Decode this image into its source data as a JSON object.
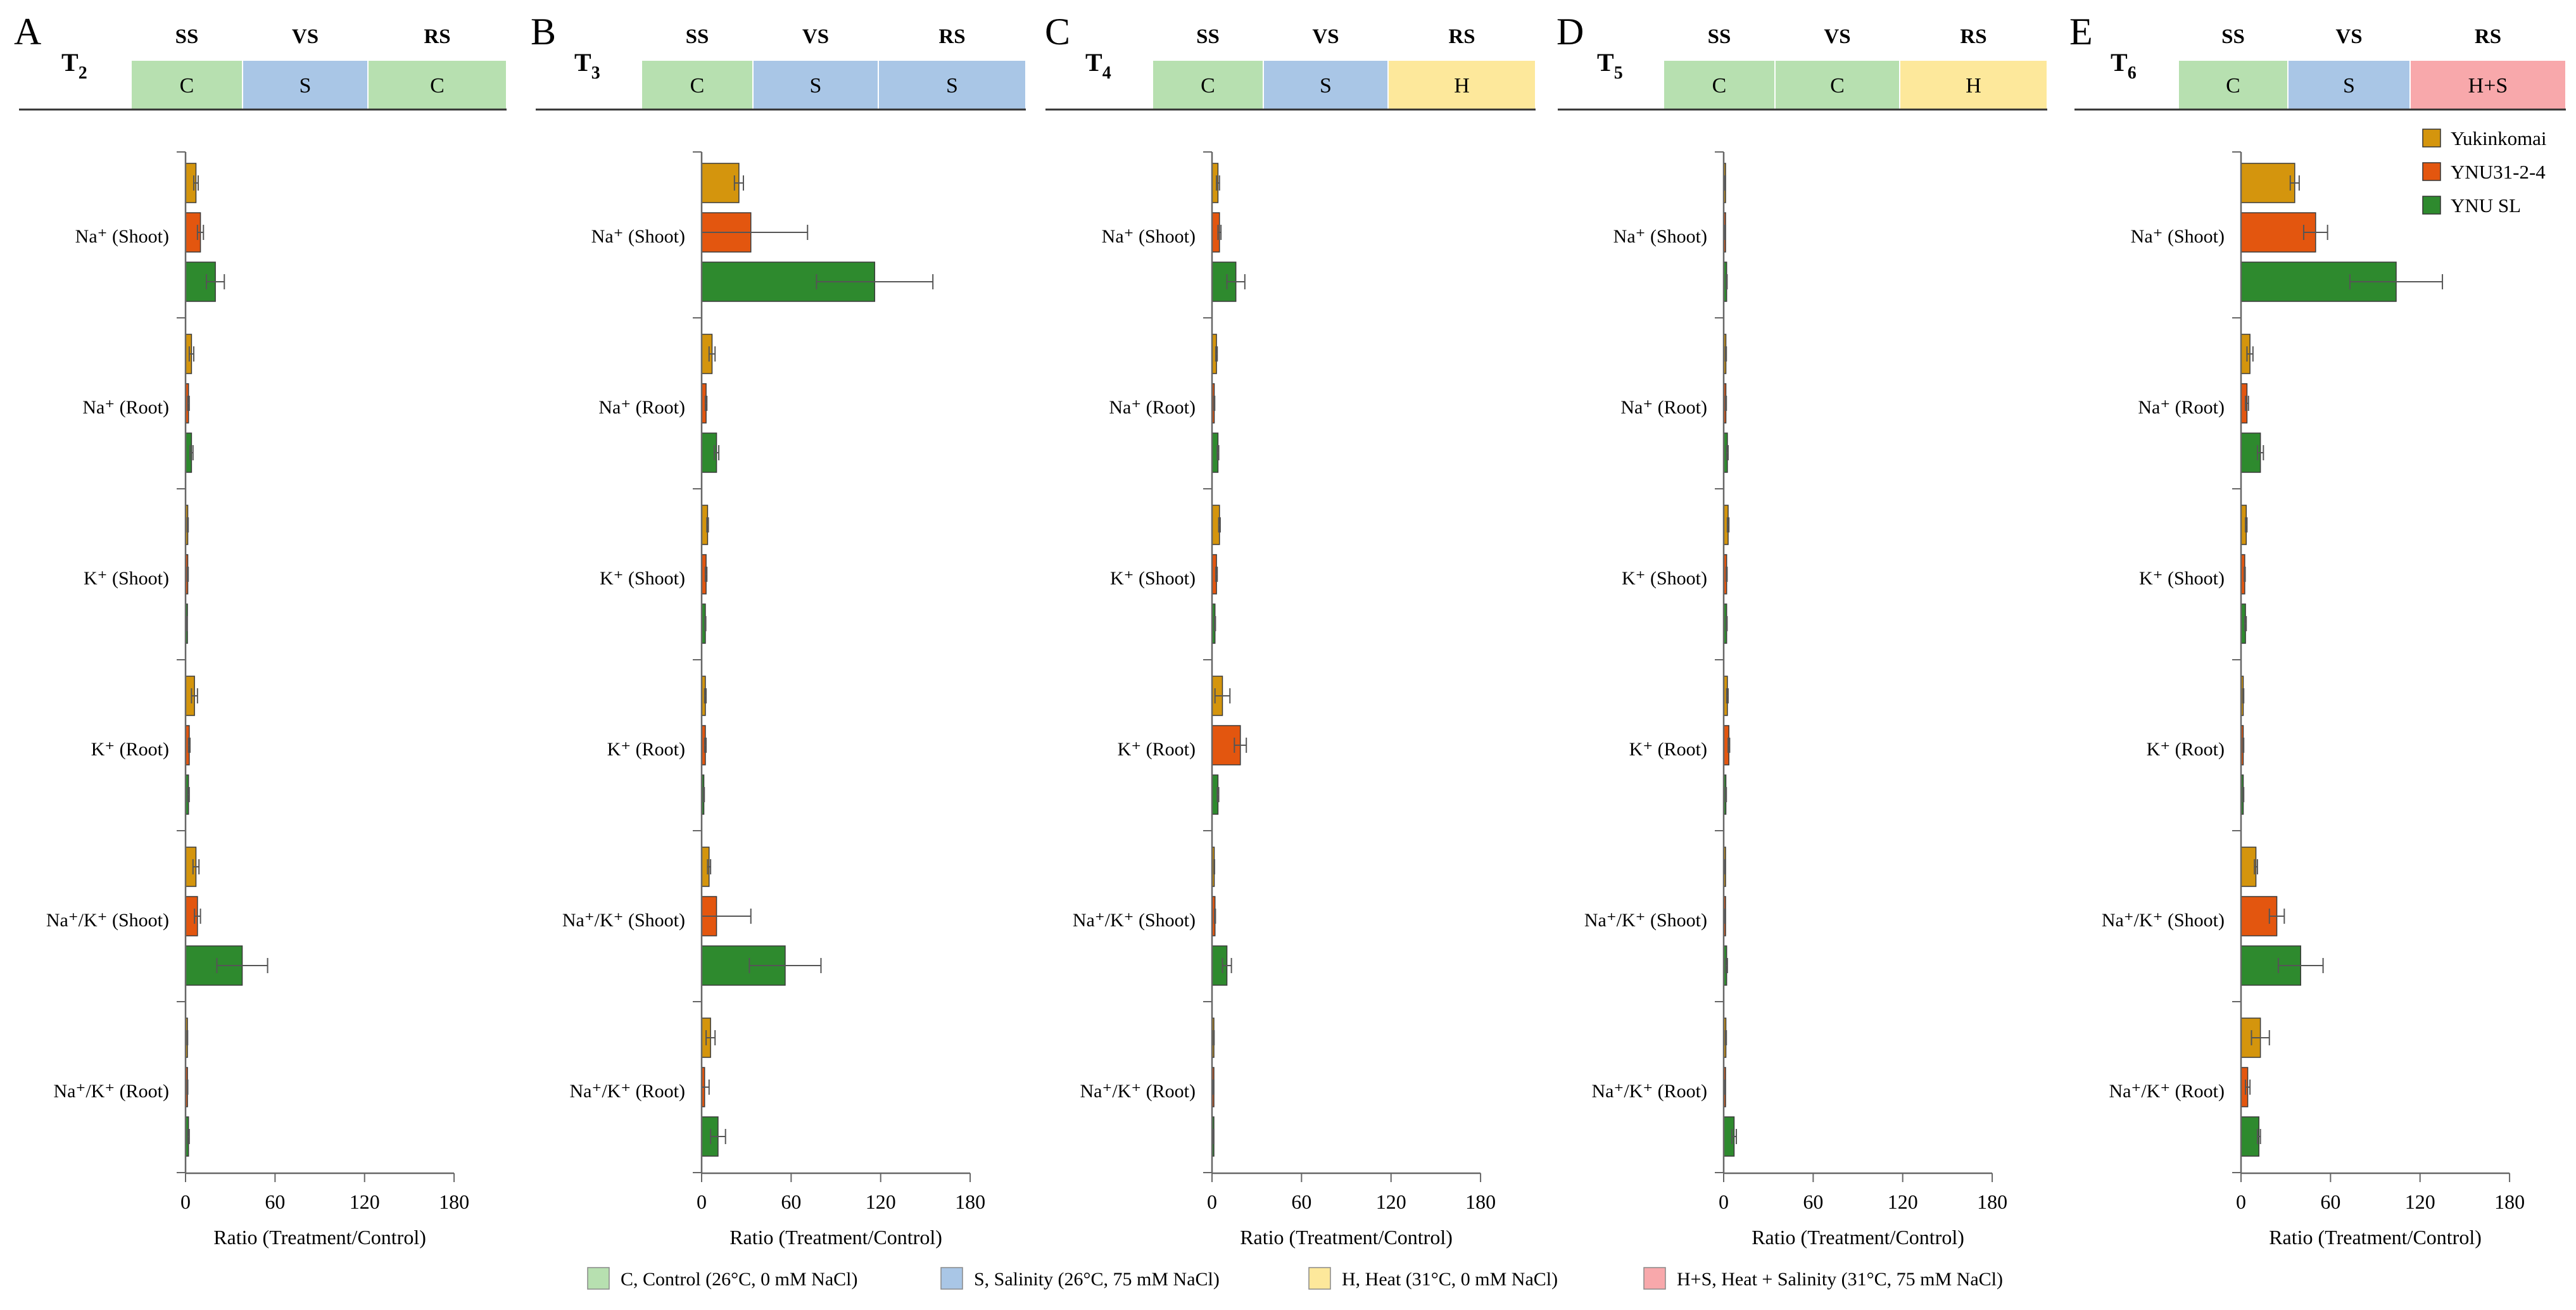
{
  "colors": {
    "C": "#b7e0b0",
    "S": "#a9c6e6",
    "H": "#fde89b",
    "H+S": "#f8a8ab",
    "Yukinkomai": "#d4950d",
    "YNU31-2-4": "#e3560f",
    "YNU SL": "#2e8a2e"
  },
  "stage_headers": [
    "SS",
    "VS",
    "RS"
  ],
  "legend_series": [
    "Yukinkomai",
    "YNU31-2-4",
    "YNU SL"
  ],
  "bottom_legend": [
    {
      "code": "C",
      "text": "C, Control (26°C, 0 mM NaCl)"
    },
    {
      "code": "S",
      "text": "S, Salinity (26°C, 75 mM NaCl)"
    },
    {
      "code": "H",
      "text": "H, Heat (31°C, 0 mM NaCl)"
    },
    {
      "code": "H+S",
      "text": "H+S, Heat + Salinity (31°C, 75 mM NaCl)"
    }
  ],
  "chart_data": [
    {
      "type": "bar",
      "orientation": "horizontal",
      "panel": "A",
      "treatment": "T",
      "treatment_sub": "2",
      "stages": [
        "C",
        "S",
        "C"
      ],
      "categories": [
        "Na⁺ (Shoot)",
        "Na⁺ (Root)",
        "K⁺ (Shoot)",
        "K⁺ (Root)",
        "Na⁺/K⁺ (Shoot)",
        "Na⁺/K⁺ (Root)"
      ],
      "series": [
        {
          "name": "Yukinkomai",
          "values": [
            7,
            4,
            1.5,
            6,
            7,
            1.2
          ],
          "errors": [
            1.5,
            1.5,
            0.3,
            2,
            2,
            0.2
          ]
        },
        {
          "name": "YNU31-2-4",
          "values": [
            10,
            2,
            1.5,
            2.5,
            8,
            1.3
          ],
          "errors": [
            2,
            0.5,
            0.3,
            0.5,
            2,
            0.2
          ]
        },
        {
          "name": "YNU SL",
          "values": [
            20,
            4,
            0.8,
            2,
            38,
            2
          ],
          "errors": [
            6,
            1,
            0.2,
            0.5,
            17,
            0.5
          ]
        }
      ],
      "xlim": [
        0,
        180
      ],
      "xticks": [
        0,
        60,
        120,
        180
      ],
      "xlabel": "Ratio (Treatment/Control)"
    },
    {
      "type": "bar",
      "orientation": "horizontal",
      "panel": "B",
      "treatment": "T",
      "treatment_sub": "3",
      "stages": [
        "C",
        "S",
        "S"
      ],
      "categories": [
        "Na⁺ (Shoot)",
        "Na⁺ (Root)",
        "K⁺ (Shoot)",
        "K⁺ (Root)",
        "Na⁺/K⁺ (Shoot)",
        "Na⁺/K⁺ (Root)"
      ],
      "series": [
        {
          "name": "Yukinkomai",
          "values": [
            25,
            7,
            4,
            2.5,
            5,
            6
          ],
          "errors": [
            3,
            2,
            0.5,
            0.5,
            1,
            3
          ]
        },
        {
          "name": "YNU31-2-4",
          "values": [
            33,
            3,
            3,
            2.5,
            10,
            2
          ],
          "errors": [
            38,
            0.5,
            0.5,
            0.5,
            23,
            3
          ]
        },
        {
          "name": "YNU SL",
          "values": [
            116,
            10,
            2.5,
            1.5,
            56,
            11
          ],
          "errors": [
            39,
            1.5,
            0.3,
            0.3,
            24,
            5
          ]
        }
      ],
      "xlim": [
        0,
        180
      ],
      "xticks": [
        0,
        60,
        120,
        180
      ],
      "xlabel": "Ratio (Treatment/Control)"
    },
    {
      "type": "bar",
      "orientation": "horizontal",
      "panel": "C",
      "treatment": "T",
      "treatment_sub": "4",
      "stages": [
        "C",
        "S",
        "H"
      ],
      "categories": [
        "Na⁺ (Shoot)",
        "Na⁺ (Root)",
        "K⁺ (Shoot)",
        "K⁺ (Root)",
        "Na⁺/K⁺ (Shoot)",
        "Na⁺/K⁺ (Root)"
      ],
      "series": [
        {
          "name": "Yukinkomai",
          "values": [
            4,
            3,
            5,
            7,
            1.5,
            1.2
          ],
          "errors": [
            1,
            0.5,
            0.5,
            5,
            0.2,
            0.2
          ]
        },
        {
          "name": "YNU31-2-4",
          "values": [
            5,
            1.5,
            3,
            19,
            2,
            1
          ],
          "errors": [
            1,
            0.3,
            0.5,
            4,
            0.3,
            0.2
          ]
        },
        {
          "name": "YNU SL",
          "values": [
            16,
            4,
            2,
            4,
            10,
            1
          ],
          "errors": [
            6,
            0.5,
            0.3,
            0.5,
            3,
            0.2
          ]
        }
      ],
      "xlim": [
        0,
        180
      ],
      "xticks": [
        0,
        60,
        120,
        180
      ],
      "xlabel": "Ratio (Treatment/Control)"
    },
    {
      "type": "bar",
      "orientation": "horizontal",
      "panel": "D",
      "treatment": "T",
      "treatment_sub": "5",
      "stages": [
        "C",
        "C",
        "H"
      ],
      "categories": [
        "Na⁺ (Shoot)",
        "Na⁺ (Root)",
        "K⁺ (Shoot)",
        "K⁺ (Root)",
        "Na⁺/K⁺ (Shoot)",
        "Na⁺/K⁺ (Root)"
      ],
      "series": [
        {
          "name": "Yukinkomai",
          "values": [
            1,
            1.5,
            3,
            2.5,
            1,
            1.5
          ],
          "errors": [
            0.2,
            0.3,
            0.5,
            0.5,
            0.2,
            0.3
          ]
        },
        {
          "name": "YNU31-2-4",
          "values": [
            1,
            1.5,
            2,
            3.5,
            1,
            1
          ],
          "errors": [
            0.2,
            0.3,
            0.3,
            0.5,
            0.2,
            0.2
          ]
        },
        {
          "name": "YNU SL",
          "values": [
            2,
            2.5,
            2,
            1.5,
            2,
            7
          ],
          "errors": [
            0.3,
            0.5,
            0.3,
            0.3,
            0.5,
            1.5
          ]
        }
      ],
      "xlim": [
        0,
        180
      ],
      "xticks": [
        0,
        60,
        120,
        180
      ],
      "xlabel": "Ratio (Treatment/Control)"
    },
    {
      "type": "bar",
      "orientation": "horizontal",
      "panel": "E",
      "treatment": "T",
      "treatment_sub": "6",
      "stages": [
        "C",
        "S",
        "H+S"
      ],
      "categories": [
        "Na⁺ (Shoot)",
        "Na⁺ (Root)",
        "K⁺ (Shoot)",
        "K⁺ (Root)",
        "Na⁺/K⁺ (Shoot)",
        "Na⁺/K⁺ (Root)"
      ],
      "series": [
        {
          "name": "Yukinkomai",
          "values": [
            36,
            6,
            3.5,
            1.5,
            10,
            13
          ],
          "errors": [
            3,
            2,
            0.5,
            0.3,
            1,
            6
          ]
        },
        {
          "name": "YNU31-2-4",
          "values": [
            50,
            4,
            2.5,
            1.5,
            24,
            4.5
          ],
          "errors": [
            8,
            1,
            0.3,
            0.3,
            5,
            1.5
          ]
        },
        {
          "name": "YNU SL",
          "values": [
            104,
            13,
            3,
            1.5,
            40,
            12
          ],
          "errors": [
            31,
            2,
            0.5,
            0.3,
            15,
            1
          ]
        }
      ],
      "xlim": [
        0,
        180
      ],
      "xticks": [
        0,
        60,
        120,
        180
      ],
      "xlabel": "Ratio (Treatment/Control)"
    }
  ]
}
